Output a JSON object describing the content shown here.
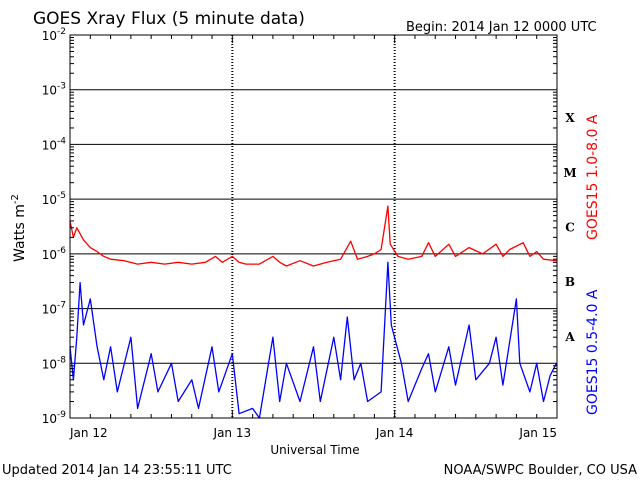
{
  "chart_data": {
    "type": "line",
    "title": "GOES Xray Flux (5 minute data)",
    "begin_label": "Begin:  2014 Jan 12 0000 UTC",
    "xlabel": "Universal Time",
    "ylabel": "Watts m",
    "ylabel_exponent": "-2",
    "yscale": "log",
    "ylim": [
      1e-09,
      0.01
    ],
    "xlim": [
      "2014-01-12 00:00",
      "2014-01-15 00:00"
    ],
    "y_ticks": [
      {
        "base": "10",
        "exp": "-9"
      },
      {
        "base": "10",
        "exp": "-8"
      },
      {
        "base": "10",
        "exp": "-7"
      },
      {
        "base": "10",
        "exp": "-6"
      },
      {
        "base": "10",
        "exp": "-5"
      },
      {
        "base": "10",
        "exp": "-4"
      },
      {
        "base": "10",
        "exp": "-3"
      },
      {
        "base": "10",
        "exp": "-2"
      }
    ],
    "x_ticks": [
      "Jan 12",
      "Jan 13",
      "Jan 14",
      "Jan 15"
    ],
    "flare_classes": [
      "A",
      "B",
      "C",
      "M",
      "X"
    ],
    "colors": {
      "long": "#ff0000",
      "short": "#0000ff",
      "axis": "#000000"
    },
    "series": [
      {
        "name": "GOES15 1.0-8.0 A",
        "color": "#ff0000",
        "points": [
          [
            "2014-01-12 00:00",
            4e-06
          ],
          [
            "2014-01-12 00:30",
            2e-06
          ],
          [
            "2014-01-12 01:00",
            3e-06
          ],
          [
            "2014-01-12 02:00",
            1.8e-06
          ],
          [
            "2014-01-12 03:00",
            1.3e-06
          ],
          [
            "2014-01-12 04:00",
            1.1e-06
          ],
          [
            "2014-01-12 05:00",
            9e-07
          ],
          [
            "2014-01-12 06:00",
            8e-07
          ],
          [
            "2014-01-12 08:00",
            7.5e-07
          ],
          [
            "2014-01-12 10:00",
            6.5e-07
          ],
          [
            "2014-01-12 12:00",
            7e-07
          ],
          [
            "2014-01-12 14:00",
            6.5e-07
          ],
          [
            "2014-01-12 16:00",
            7e-07
          ],
          [
            "2014-01-12 18:00",
            6.5e-07
          ],
          [
            "2014-01-12 20:00",
            7e-07
          ],
          [
            "2014-01-12 21:30",
            9e-07
          ],
          [
            "2014-01-12 22:30",
            7e-07
          ],
          [
            "2014-01-13 00:00",
            9e-07
          ],
          [
            "2014-01-13 01:00",
            7e-07
          ],
          [
            "2014-01-13 02:00",
            6.5e-07
          ],
          [
            "2014-01-13 04:00",
            6.5e-07
          ],
          [
            "2014-01-13 06:00",
            9e-07
          ],
          [
            "2014-01-13 07:00",
            7e-07
          ],
          [
            "2014-01-13 08:00",
            6e-07
          ],
          [
            "2014-01-13 10:00",
            7.5e-07
          ],
          [
            "2014-01-13 12:00",
            6e-07
          ],
          [
            "2014-01-13 14:00",
            7e-07
          ],
          [
            "2014-01-13 16:00",
            8e-07
          ],
          [
            "2014-01-13 17:30",
            1.7e-06
          ],
          [
            "2014-01-13 18:30",
            8e-07
          ],
          [
            "2014-01-13 20:00",
            9e-07
          ],
          [
            "2014-01-13 21:00",
            1e-06
          ],
          [
            "2014-01-13 22:00",
            1.2e-06
          ],
          [
            "2014-01-13 23:00",
            7.5e-06
          ],
          [
            "2014-01-13 23:20",
            1.5e-06
          ],
          [
            "2014-01-14 00:30",
            9e-07
          ],
          [
            "2014-01-14 02:00",
            8e-07
          ],
          [
            "2014-01-14 04:00",
            9e-07
          ],
          [
            "2014-01-14 05:00",
            1.6e-06
          ],
          [
            "2014-01-14 06:00",
            9e-07
          ],
          [
            "2014-01-14 08:00",
            1.5e-06
          ],
          [
            "2014-01-14 09:00",
            9e-07
          ],
          [
            "2014-01-14 11:00",
            1.3e-06
          ],
          [
            "2014-01-14 13:00",
            1e-06
          ],
          [
            "2014-01-14 15:00",
            1.5e-06
          ],
          [
            "2014-01-14 16:00",
            9e-07
          ],
          [
            "2014-01-14 17:00",
            1.2e-06
          ],
          [
            "2014-01-14 19:00",
            1.6e-06
          ],
          [
            "2014-01-14 20:00",
            9e-07
          ],
          [
            "2014-01-14 21:00",
            1.1e-06
          ],
          [
            "2014-01-14 22:00",
            8e-07
          ],
          [
            "2014-01-14 23:55",
            7.5e-07
          ]
        ]
      },
      {
        "name": "GOES15 0.5-4.0 A",
        "color": "#0000ff",
        "points": [
          [
            "2014-01-12 00:00",
            2e-08
          ],
          [
            "2014-01-12 00:30",
            5e-09
          ],
          [
            "2014-01-12 01:00",
            3e-08
          ],
          [
            "2014-01-12 01:30",
            3e-07
          ],
          [
            "2014-01-12 02:00",
            5e-08
          ],
          [
            "2014-01-12 03:00",
            1.5e-07
          ],
          [
            "2014-01-12 04:00",
            2e-08
          ],
          [
            "2014-01-12 05:00",
            5e-09
          ],
          [
            "2014-01-12 06:00",
            2e-08
          ],
          [
            "2014-01-12 07:00",
            3e-09
          ],
          [
            "2014-01-12 09:00",
            3e-08
          ],
          [
            "2014-01-12 10:00",
            1.5e-09
          ],
          [
            "2014-01-12 12:00",
            1.5e-08
          ],
          [
            "2014-01-12 13:00",
            3e-09
          ],
          [
            "2014-01-12 15:00",
            1e-08
          ],
          [
            "2014-01-12 16:00",
            2e-09
          ],
          [
            "2014-01-12 18:00",
            5e-09
          ],
          [
            "2014-01-12 19:00",
            1.5e-09
          ],
          [
            "2014-01-12 21:00",
            2e-08
          ],
          [
            "2014-01-12 22:00",
            3e-09
          ],
          [
            "2014-01-13 00:00",
            1.5e-08
          ],
          [
            "2014-01-13 01:00",
            1.2e-09
          ],
          [
            "2014-01-13 03:00",
            1.5e-09
          ],
          [
            "2014-01-13 04:00",
            1e-09
          ],
          [
            "2014-01-13 06:00",
            3e-08
          ],
          [
            "2014-01-13 07:00",
            2e-09
          ],
          [
            "2014-01-13 08:00",
            1e-08
          ],
          [
            "2014-01-13 10:00",
            2e-09
          ],
          [
            "2014-01-13 12:00",
            2e-08
          ],
          [
            "2014-01-13 13:00",
            2e-09
          ],
          [
            "2014-01-13 15:00",
            3e-08
          ],
          [
            "2014-01-13 16:00",
            5e-09
          ],
          [
            "2014-01-13 17:00",
            7e-08
          ],
          [
            "2014-01-13 18:00",
            5e-09
          ],
          [
            "2014-01-13 19:00",
            1e-08
          ],
          [
            "2014-01-13 20:00",
            2e-09
          ],
          [
            "2014-01-13 22:00",
            3e-09
          ],
          [
            "2014-01-13 23:00",
            7e-07
          ],
          [
            "2014-01-13 23:30",
            5e-08
          ],
          [
            "2014-01-14 01:00",
            1e-08
          ],
          [
            "2014-01-14 02:00",
            2e-09
          ],
          [
            "2014-01-14 04:00",
            8e-09
          ],
          [
            "2014-01-14 05:00",
            1.5e-08
          ],
          [
            "2014-01-14 06:00",
            3e-09
          ],
          [
            "2014-01-14 08:00",
            2e-08
          ],
          [
            "2014-01-14 09:00",
            4e-09
          ],
          [
            "2014-01-14 11:00",
            5e-08
          ],
          [
            "2014-01-14 12:00",
            5e-09
          ],
          [
            "2014-01-14 14:00",
            1e-08
          ],
          [
            "2014-01-14 15:00",
            3e-08
          ],
          [
            "2014-01-14 16:00",
            4e-09
          ],
          [
            "2014-01-14 18:00",
            1.5e-07
          ],
          [
            "2014-01-14 18:30",
            1e-08
          ],
          [
            "2014-01-14 20:00",
            3e-09
          ],
          [
            "2014-01-14 21:00",
            1e-08
          ],
          [
            "2014-01-14 22:00",
            2e-09
          ],
          [
            "2014-01-14 23:00",
            6e-09
          ],
          [
            "2014-01-14 23:55",
            1e-08
          ]
        ]
      }
    ]
  },
  "footer": {
    "updated": "Updated 2014 Jan 14 23:55:11 UTC",
    "source": "NOAA/SWPC Boulder, CO USA"
  }
}
